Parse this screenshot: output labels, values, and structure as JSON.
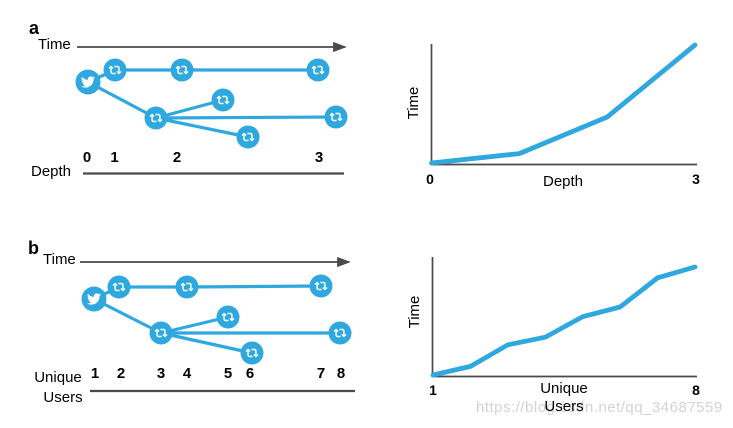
{
  "colors": {
    "twitter_blue": "#2fa8e0",
    "axis_gray": "#4a4a4a",
    "text": "#000000",
    "watermark_gray": "#d3d3d3"
  },
  "watermark_text": "https://blog.csdn.net/qq_34687559",
  "panel_a": {
    "label": "a",
    "time_axis_label": "Time",
    "x_axis_label": "Depth",
    "ticks": [
      "0",
      "1",
      "2",
      "3"
    ],
    "cascade_nodes": [
      {
        "type": "tweet"
      },
      {
        "type": "retweet"
      },
      {
        "type": "retweet"
      },
      {
        "type": "retweet"
      },
      {
        "type": "retweet"
      },
      {
        "type": "retweet"
      },
      {
        "type": "retweet"
      },
      {
        "type": "retweet"
      }
    ],
    "cascade_edges": [
      [
        0,
        1
      ],
      [
        1,
        2
      ],
      [
        2,
        3
      ],
      [
        0,
        4
      ],
      [
        4,
        5
      ],
      [
        4,
        7
      ],
      [
        4,
        6
      ]
    ]
  },
  "panel_b": {
    "label": "b",
    "time_axis_label": "Time",
    "x_axis_label_line1": "Unique",
    "x_axis_label_line2": "Users",
    "ticks": [
      "1",
      "2",
      "3",
      "4",
      "5",
      "6",
      "7",
      "8"
    ],
    "cascade_nodes": [
      {
        "type": "tweet"
      },
      {
        "type": "retweet"
      },
      {
        "type": "retweet"
      },
      {
        "type": "retweet"
      },
      {
        "type": "retweet"
      },
      {
        "type": "retweet"
      },
      {
        "type": "retweet"
      },
      {
        "type": "retweet"
      }
    ],
    "cascade_edges": [
      [
        0,
        1
      ],
      [
        1,
        2
      ],
      [
        2,
        3
      ],
      [
        0,
        4
      ],
      [
        4,
        5
      ],
      [
        4,
        7
      ],
      [
        4,
        6
      ]
    ]
  },
  "chart_data": [
    {
      "type": "line",
      "panel": "a",
      "xlabel": "Depth",
      "ylabel": "Time",
      "x": [
        0,
        1,
        2,
        3
      ],
      "y_relative": [
        0,
        0.08,
        0.39,
        1.0
      ],
      "xlim": [
        0,
        3
      ],
      "ylim": [
        0,
        1
      ],
      "x_ticks_shown": [
        "0",
        "3"
      ],
      "y_ticks_shown": [],
      "grid": false,
      "legend": false
    },
    {
      "type": "line",
      "panel": "b",
      "xlabel": "Unique Users",
      "xlabel_line1": "Unique",
      "xlabel_line2": "Users",
      "ylabel": "Time",
      "x": [
        1,
        2,
        3,
        4,
        5,
        6,
        7,
        8
      ],
      "y_relative": [
        0,
        0.08,
        0.28,
        0.35,
        0.54,
        0.63,
        0.9,
        1.0
      ],
      "xlim": [
        1,
        8
      ],
      "ylim": [
        0,
        1
      ],
      "x_ticks_shown": [
        "1",
        "8"
      ],
      "y_ticks_shown": [],
      "grid": false,
      "legend": false
    }
  ]
}
